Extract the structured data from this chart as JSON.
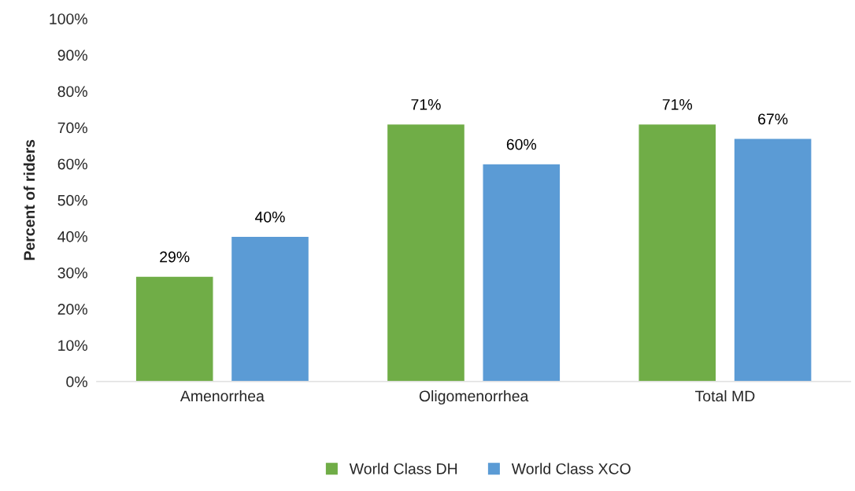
{
  "chart_data": {
    "type": "bar",
    "ylabel": "Percent of riders",
    "categories": [
      "Amenorrhea",
      "Oligomenorrhea",
      "Total MD"
    ],
    "series": [
      {
        "name": "World Class DH",
        "color": "#70ad47",
        "values": [
          29,
          71,
          71
        ],
        "value_labels": [
          "29%",
          "71%",
          "71%"
        ]
      },
      {
        "name": "World Class XCO",
        "color": "#5b9bd5",
        "values": [
          40,
          60,
          67
        ],
        "value_labels": [
          "40%",
          "60%",
          "67%"
        ]
      }
    ],
    "ylim": [
      0,
      100
    ],
    "yticks": [
      {
        "value": 0,
        "label": "0%"
      },
      {
        "value": 10,
        "label": "10%"
      },
      {
        "value": 20,
        "label": "20%"
      },
      {
        "value": 30,
        "label": "30%"
      },
      {
        "value": 40,
        "label": "40%"
      },
      {
        "value": 50,
        "label": "50%"
      },
      {
        "value": 60,
        "label": "60%"
      },
      {
        "value": 70,
        "label": "70%"
      },
      {
        "value": 80,
        "label": "80%"
      },
      {
        "value": 90,
        "label": "90%"
      },
      {
        "value": 100,
        "label": "100%"
      }
    ],
    "grid": false,
    "legend": "bottom"
  }
}
